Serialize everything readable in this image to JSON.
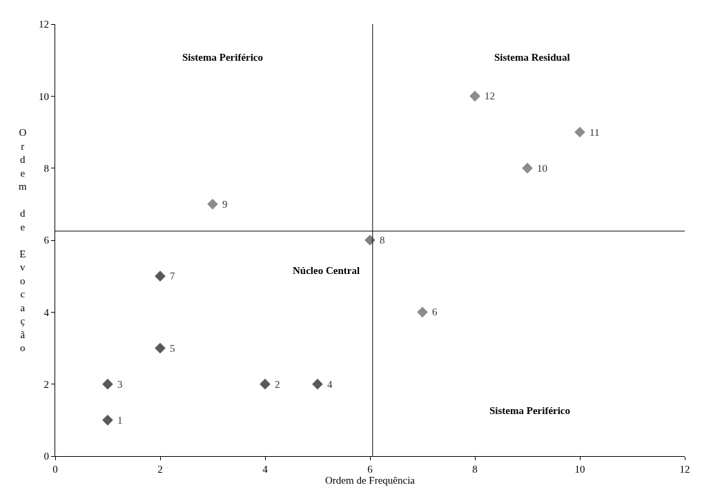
{
  "chart_data": {
    "type": "scatter",
    "xlabel": "Ordem de Frequência",
    "ylabel": "Ordem de Evocação",
    "x": [
      1,
      4,
      1,
      5,
      2,
      7,
      2,
      6,
      3,
      9,
      10,
      8
    ],
    "values": [
      1,
      2,
      2,
      2,
      3,
      4,
      5,
      6,
      7,
      8,
      9,
      10
    ],
    "colors": [
      "#595959",
      "#595959",
      "#595959",
      "#595959",
      "#595959",
      "#8c8c8c",
      "#595959",
      "#7f7f7f",
      "#8c8c8c",
      "#8c8c8c",
      "#8c8c8c",
      "#8c8c8c"
    ],
    "marker": "diamond",
    "xlim": [
      0,
      12
    ],
    "xticks": [
      0,
      2,
      4,
      6,
      8,
      10,
      12
    ],
    "ylim": [
      0,
      12
    ],
    "yticks": [
      0,
      2,
      4,
      6,
      8,
      10,
      12
    ],
    "ref_lines": [
      {
        "axis": "x",
        "value": 6.05,
        "color": "#000000"
      },
      {
        "axis": "y",
        "value": 6.25,
        "color": "#000000"
      }
    ],
    "annotations": [
      "Sistema Periférico",
      "Sistema Residual",
      "Núcleo Central",
      "Sistema Periférico",
      {
        "text": "1",
        "x": 1,
        "y": 1
      },
      {
        "text": "2",
        "x": 4,
        "y": 2
      },
      {
        "text": "3",
        "x": 1,
        "y": 2
      },
      {
        "text": "4",
        "x": 5,
        "y": 2
      },
      {
        "text": "5",
        "x": 2,
        "y": 3
      },
      {
        "text": "6",
        "x": 7,
        "y": 4
      },
      {
        "text": "7",
        "x": 2,
        "y": 5
      },
      {
        "text": "8",
        "x": 6,
        "y": 6
      },
      {
        "text": "9",
        "x": 3,
        "y": 7
      },
      {
        "text": "10",
        "x": 9,
        "y": 8
      },
      {
        "text": "11",
        "x": 10,
        "y": 9
      },
      {
        "text": "12",
        "x": 8,
        "y": 10
      }
    ]
  }
}
